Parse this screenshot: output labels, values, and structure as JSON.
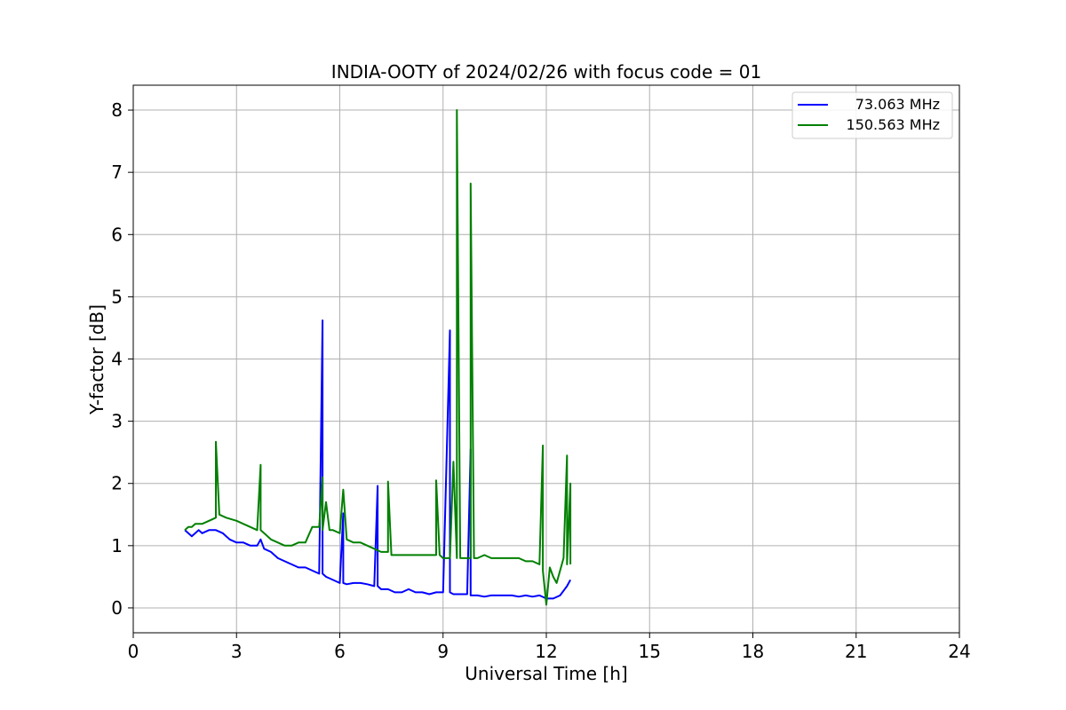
{
  "chart_data": {
    "type": "line",
    "title": "INDIA-OOTY of 2024/02/26 with focus code = 01",
    "xlabel": "Universal Time [h]",
    "ylabel": "Y-factor [dB]",
    "xlim": [
      0,
      24
    ],
    "ylim": [
      -0.4,
      8.4
    ],
    "xticks": [
      0,
      3,
      6,
      9,
      12,
      15,
      18,
      21,
      24
    ],
    "yticks": [
      0,
      1,
      2,
      3,
      4,
      5,
      6,
      7,
      8
    ],
    "grid": true,
    "legend_position": "top-right",
    "series": [
      {
        "name": "73.063 MHz",
        "color": "#0000ff",
        "x": [
          1.5,
          1.6,
          1.7,
          1.8,
          1.9,
          2.0,
          2.2,
          2.4,
          2.6,
          2.8,
          3.0,
          3.2,
          3.4,
          3.6,
          3.7,
          3.8,
          4.0,
          4.2,
          4.4,
          4.6,
          4.8,
          5.0,
          5.2,
          5.4,
          5.5,
          5.5,
          5.6,
          5.8,
          6.0,
          6.1,
          6.1,
          6.2,
          6.4,
          6.6,
          6.8,
          7.0,
          7.1,
          7.1,
          7.2,
          7.4,
          7.6,
          7.8,
          8.0,
          8.2,
          8.4,
          8.6,
          8.8,
          9.0,
          9.2,
          9.2,
          9.3,
          9.5,
          9.7,
          9.8,
          9.8,
          9.9,
          10.0,
          10.2,
          10.4,
          10.6,
          10.8,
          11.0,
          11.2,
          11.4,
          11.6,
          11.8,
          12.0,
          12.2,
          12.4,
          12.6,
          12.7
        ],
        "values": [
          1.25,
          1.2,
          1.15,
          1.2,
          1.25,
          1.2,
          1.25,
          1.25,
          1.2,
          1.1,
          1.05,
          1.05,
          1.0,
          1.0,
          1.1,
          0.95,
          0.9,
          0.8,
          0.75,
          0.7,
          0.65,
          0.65,
          0.6,
          0.55,
          4.62,
          0.55,
          0.5,
          0.45,
          0.4,
          1.52,
          0.4,
          0.38,
          0.4,
          0.4,
          0.38,
          0.35,
          1.96,
          0.35,
          0.3,
          0.3,
          0.25,
          0.25,
          0.3,
          0.25,
          0.25,
          0.22,
          0.25,
          0.25,
          4.46,
          0.25,
          0.22,
          0.22,
          0.22,
          2.55,
          0.2,
          0.2,
          0.2,
          0.18,
          0.2,
          0.2,
          0.2,
          0.2,
          0.18,
          0.2,
          0.18,
          0.2,
          0.15,
          0.15,
          0.2,
          0.35,
          0.45
        ]
      },
      {
        "name": "150.563 MHz",
        "color": "#008000",
        "x": [
          1.5,
          1.6,
          1.7,
          1.8,
          2.0,
          2.2,
          2.4,
          2.4,
          2.5,
          2.7,
          3.0,
          3.2,
          3.4,
          3.6,
          3.7,
          3.7,
          3.8,
          4.0,
          4.2,
          4.4,
          4.6,
          4.8,
          5.0,
          5.2,
          5.4,
          5.5,
          5.5,
          5.6,
          5.7,
          5.8,
          6.0,
          6.1,
          6.2,
          6.4,
          6.6,
          6.8,
          7.0,
          7.2,
          7.4,
          7.4,
          7.5,
          7.7,
          8.0,
          8.2,
          8.4,
          8.6,
          8.8,
          8.8,
          8.9,
          9.0,
          9.2,
          9.3,
          9.4,
          9.4,
          9.5,
          9.6,
          9.8,
          9.8,
          9.9,
          10.0,
          10.2,
          10.4,
          10.6,
          10.8,
          11.0,
          11.2,
          11.4,
          11.6,
          11.8,
          11.9,
          11.9,
          12.0,
          12.1,
          12.2,
          12.3,
          12.4,
          12.5,
          12.6,
          12.6,
          12.7,
          12.7
        ],
        "values": [
          1.25,
          1.3,
          1.3,
          1.35,
          1.35,
          1.4,
          1.45,
          2.67,
          1.5,
          1.45,
          1.4,
          1.35,
          1.3,
          1.25,
          2.3,
          1.25,
          1.2,
          1.1,
          1.05,
          1.0,
          1.0,
          1.05,
          1.05,
          1.3,
          1.3,
          2.1,
          1.25,
          1.7,
          1.25,
          1.25,
          1.2,
          1.9,
          1.1,
          1.05,
          1.05,
          1.0,
          0.95,
          0.9,
          0.9,
          2.03,
          0.85,
          0.85,
          0.85,
          0.85,
          0.85,
          0.85,
          0.85,
          2.05,
          0.85,
          0.8,
          0.8,
          2.35,
          0.8,
          8.0,
          0.8,
          0.8,
          0.8,
          6.82,
          0.8,
          0.8,
          0.85,
          0.8,
          0.8,
          0.8,
          0.8,
          0.8,
          0.75,
          0.75,
          0.7,
          2.61,
          0.6,
          0.05,
          0.65,
          0.5,
          0.4,
          0.6,
          0.8,
          2.45,
          0.7,
          2.0,
          0.7
        ]
      }
    ]
  }
}
